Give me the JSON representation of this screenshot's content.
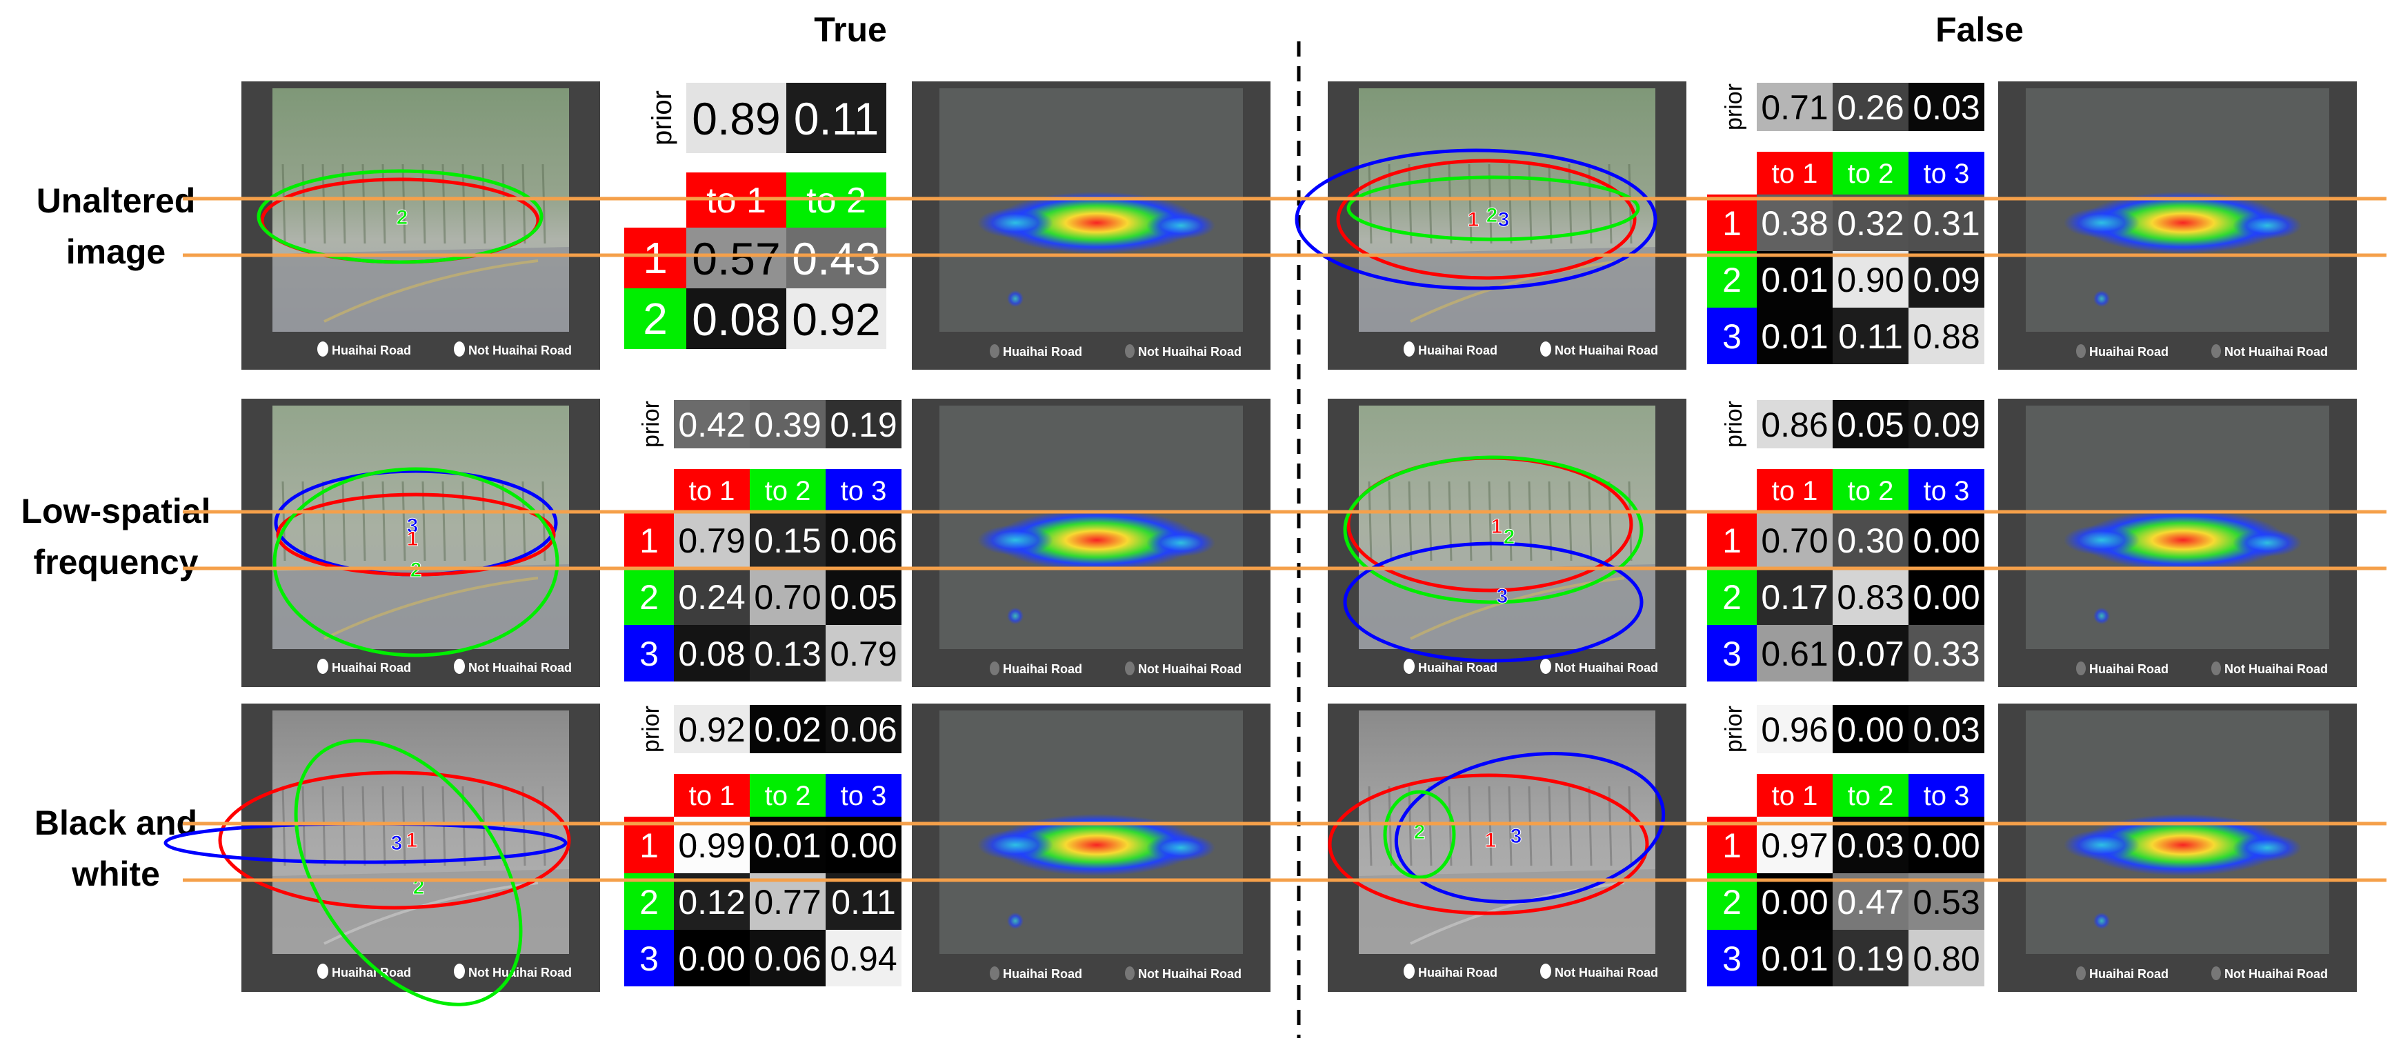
{
  "headers": {
    "true": "True",
    "false": "False"
  },
  "rows": [
    {
      "label": [
        "Unaltered",
        "image"
      ]
    },
    {
      "label": [
        "Low-spatial",
        "frequency"
      ]
    },
    {
      "label": [
        "Black and",
        "white"
      ]
    }
  ],
  "legend": {
    "road": "Huaihai Road",
    "not_road": "Not Huaihai Road"
  },
  "prior_label": "prior",
  "transition_labels": [
    "to 1",
    "to 2",
    "to 3"
  ],
  "state_labels": [
    "1",
    "2",
    "3"
  ],
  "colors": {
    "state1": "#ff0000",
    "state2": "#00ee00",
    "state3": "#0000ff",
    "guide": "#f5a04a"
  },
  "panels": [
    {
      "id": "true-unaltered",
      "column": "True",
      "row": "Unaltered image",
      "n": 2,
      "prior": [
        "0.89",
        "0.11"
      ],
      "prior_vals": [
        0.89,
        0.11
      ],
      "matrix": [
        [
          "0.57",
          "0.43"
        ],
        [
          "0.08",
          "0.92"
        ]
      ],
      "matrix_vals": [
        [
          0.57,
          0.43
        ],
        [
          0.08,
          0.92
        ]
      ],
      "state_markers": [
        "2"
      ]
    },
    {
      "id": "false-unaltered",
      "column": "False",
      "row": "Unaltered image",
      "n": 3,
      "prior": [
        "0.71",
        "0.26",
        "0.03"
      ],
      "prior_vals": [
        0.71,
        0.26,
        0.03
      ],
      "matrix": [
        [
          "0.38",
          "0.32",
          "0.31"
        ],
        [
          "0.01",
          "0.90",
          "0.09"
        ],
        [
          "0.01",
          "0.11",
          "0.88"
        ]
      ],
      "matrix_vals": [
        [
          0.38,
          0.32,
          0.31
        ],
        [
          0.01,
          0.9,
          0.09
        ],
        [
          0.01,
          0.11,
          0.88
        ]
      ],
      "state_markers": [
        "1",
        "2",
        "3"
      ]
    },
    {
      "id": "true-low",
      "column": "True",
      "row": "Low-spatial frequency",
      "n": 3,
      "prior": [
        "0.42",
        "0.39",
        "0.19"
      ],
      "prior_vals": [
        0.42,
        0.39,
        0.19
      ],
      "matrix": [
        [
          "0.79",
          "0.15",
          "0.06"
        ],
        [
          "0.24",
          "0.70",
          "0.05"
        ],
        [
          "0.08",
          "0.13",
          "0.79"
        ]
      ],
      "matrix_vals": [
        [
          0.79,
          0.15,
          0.06
        ],
        [
          0.24,
          0.7,
          0.05
        ],
        [
          0.08,
          0.13,
          0.79
        ]
      ],
      "state_markers": [
        "3",
        "1",
        "2"
      ]
    },
    {
      "id": "false-low",
      "column": "False",
      "row": "Low-spatial frequency",
      "n": 3,
      "prior": [
        "0.86",
        "0.05",
        "0.09"
      ],
      "prior_vals": [
        0.86,
        0.05,
        0.09
      ],
      "matrix": [
        [
          "0.70",
          "0.30",
          "0.00"
        ],
        [
          "0.17",
          "0.83",
          "0.00"
        ],
        [
          "0.61",
          "0.07",
          "0.33"
        ]
      ],
      "matrix_vals": [
        [
          0.7,
          0.3,
          0.0
        ],
        [
          0.17,
          0.83,
          0.0
        ],
        [
          0.61,
          0.07,
          0.33
        ]
      ],
      "state_markers": [
        "1",
        "2",
        "3"
      ]
    },
    {
      "id": "true-bw",
      "column": "True",
      "row": "Black and white",
      "n": 3,
      "prior": [
        "0.92",
        "0.02",
        "0.06"
      ],
      "prior_vals": [
        0.92,
        0.02,
        0.06
      ],
      "matrix": [
        [
          "0.99",
          "0.01",
          "0.00"
        ],
        [
          "0.12",
          "0.77",
          "0.11"
        ],
        [
          "0.00",
          "0.06",
          "0.94"
        ]
      ],
      "matrix_vals": [
        [
          0.99,
          0.01,
          0.0
        ],
        [
          0.12,
          0.77,
          0.11
        ],
        [
          0.0,
          0.06,
          0.94
        ]
      ],
      "state_markers": [
        "3",
        "1",
        "2"
      ]
    },
    {
      "id": "false-bw",
      "column": "False",
      "row": "Black and white",
      "n": 3,
      "prior": [
        "0.96",
        "0.00",
        "0.03"
      ],
      "prior_vals": [
        0.96,
        0.0,
        0.03
      ],
      "matrix": [
        [
          "0.97",
          "0.03",
          "0.00"
        ],
        [
          "0.00",
          "0.47",
          "0.53"
        ],
        [
          "0.01",
          "0.19",
          "0.80"
        ]
      ],
      "matrix_vals": [
        [
          0.97,
          0.03,
          0.0
        ],
        [
          0.0,
          0.47,
          0.53
        ],
        [
          0.01,
          0.19,
          0.8
        ]
      ],
      "state_markers": [
        "2",
        "1",
        "3"
      ]
    }
  ]
}
